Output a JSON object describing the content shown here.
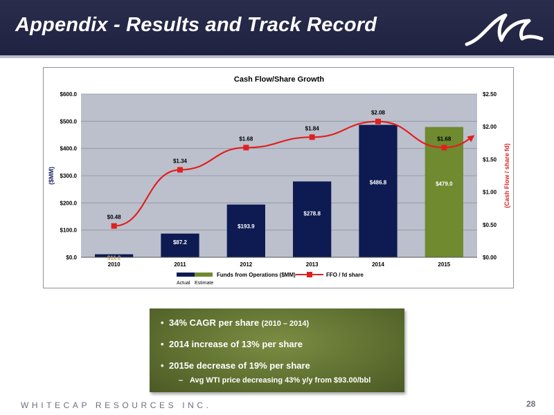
{
  "slide": {
    "title": "Appendix - Results and Track Record",
    "footer_brand": "WHITECAP RESOURCES INC.",
    "page_number": "28"
  },
  "chart_data": {
    "type": "bar",
    "title": "Cash Flow/Share Growth",
    "categories": [
      "2010",
      "2011",
      "2012",
      "2013",
      "2014",
      "2015"
    ],
    "ylabel_left": "($MM)",
    "ylabel_right": "(Cash Flow / share fd)",
    "left_axis": {
      "min": 0,
      "max": 600,
      "ticks": [
        "$0.0",
        "$100.0",
        "$200.0",
        "$300.0",
        "$400.0",
        "$500.0",
        "$600.0"
      ]
    },
    "right_axis": {
      "min": 0,
      "max": 2.5,
      "ticks": [
        "$0.00",
        "$0.50",
        "$1.00",
        "$1.50",
        "$2.00",
        "$2.50"
      ]
    },
    "grid": true,
    "series": [
      {
        "name": "Funds from Operations ($MM)",
        "kind": "bar",
        "axis": "left",
        "values": [
          11.2,
          87.2,
          193.9,
          278.8,
          486.8,
          479.0
        ],
        "labels": [
          "$11.2",
          "$87.2",
          "$193.9",
          "$278.8",
          "$486.8",
          "$479.0"
        ],
        "bar_colors": [
          "#0d1b52",
          "#0d1b52",
          "#0d1b52",
          "#0d1b52",
          "#0d1b52",
          "#6f8a2f"
        ]
      },
      {
        "name": "FFO / fd share",
        "kind": "line",
        "axis": "right",
        "color": "#e02020",
        "values": [
          0.48,
          1.34,
          1.68,
          1.84,
          2.08,
          1.68
        ],
        "labels": [
          "$0.48",
          "$1.34",
          "$1.68",
          "$1.84",
          "$2.08",
          "$1.68"
        ]
      }
    ],
    "legend": {
      "position": "bottom",
      "actual_label": "Actual",
      "estimate_label": "Estimate",
      "actual_color": "#0d1b52",
      "estimate_color": "#6f8a2f"
    }
  },
  "bullets": {
    "items": [
      {
        "main": "34% CAGR per share ",
        "small": "(2010 – 2014)"
      },
      {
        "main": "2014 increase of 13% per share",
        "small": ""
      },
      {
        "main": "2015e decrease of 19% per share",
        "small": ""
      }
    ],
    "sub_item": "Avg WTI price decreasing 43% y/y from $93.00/bbl",
    "bullet_glyph": "•",
    "dash_glyph": "–"
  }
}
